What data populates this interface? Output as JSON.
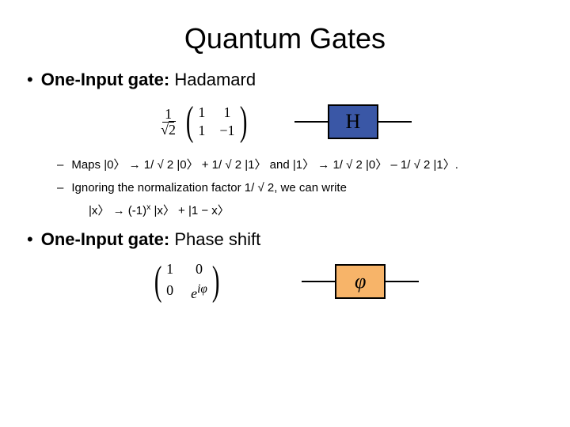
{
  "title": "Quantum Gates",
  "section1": {
    "bullet_dot": "•",
    "bold": "One-Input gate:",
    "label": " Hadamard"
  },
  "hadamard": {
    "frac_num": "1",
    "frac_den_sqrt": "√",
    "frac_den_val": "2",
    "m11": "1",
    "m12": "1",
    "m21": "1",
    "m22": "−1",
    "gate_letter": "H",
    "gate_bg": "#3a57a6",
    "gate_border": "#000000"
  },
  "sub_bullets": {
    "dash": "–",
    "line1": "Maps |0〉 → 1/ √ 2 |0〉 + 1/ √ 2 |1〉 and |1〉 → 1/ √ 2 |0〉 – 1/ √ 2 |1〉.",
    "line2": "Ignoring the normalization factor 1/ √ 2, we can write",
    "expr_a": "|x〉 → (-1)",
    "expr_sup": "x",
    "expr_b": " |x〉 +  |1 − x〉"
  },
  "section2": {
    "bullet_dot": "•",
    "bold": "One-Input gate:",
    "label": " Phase shift"
  },
  "phase": {
    "m11": "1",
    "m12": "0",
    "m21": "0",
    "m22_e": "e",
    "m22_sup": "iφ",
    "gate_letter": "φ",
    "gate_bg": "#f7b469",
    "gate_border": "#000000"
  },
  "colors": {
    "background": "#ffffff",
    "text": "#000000"
  }
}
